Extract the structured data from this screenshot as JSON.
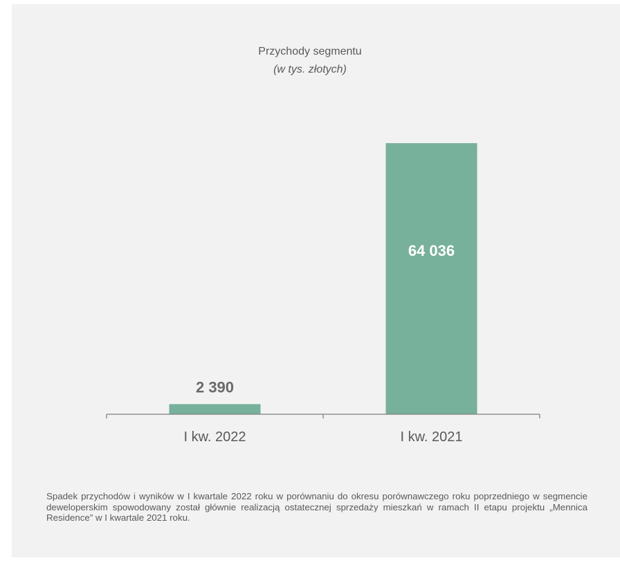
{
  "chart_data": {
    "type": "bar",
    "title": "Przychody segmentu",
    "subtitle": "(w tys. złotych)",
    "categories": [
      "I kw. 2022",
      "I kw. 2021"
    ],
    "values": [
      2390,
      64036
    ],
    "value_labels": [
      "2 390",
      "64 036"
    ],
    "bar_color": "#77b09b",
    "ylim": [
      0,
      64036
    ],
    "grid": false,
    "legend": "none"
  },
  "note": "Spadek przychodów i wyników w I kwartale 2022 roku w porównaniu do okresu porównawczego roku poprzedniego w segmencie deweloperskim spowodowany został głównie realizacją ostatecznej sprzedaży mieszkań w ramach II etapu projektu „Mennica Residence” w I kwartale 2021 roku."
}
